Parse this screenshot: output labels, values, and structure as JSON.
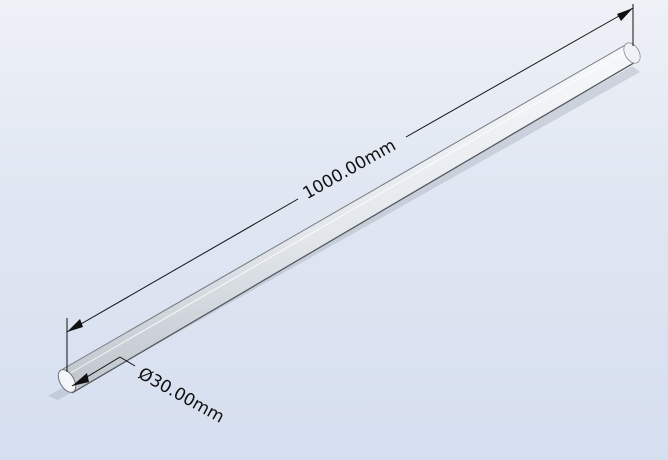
{
  "dimensions": {
    "length_label": "1000.00mm",
    "diameter_label": "Ø30.00mm"
  },
  "colors": {
    "background_top": "#eef1f6",
    "background_bottom": "#d6dff0",
    "rod_fill": "#e9ecf0",
    "rod_edge": "#6b6f75",
    "dimension_line": "#111111"
  }
}
